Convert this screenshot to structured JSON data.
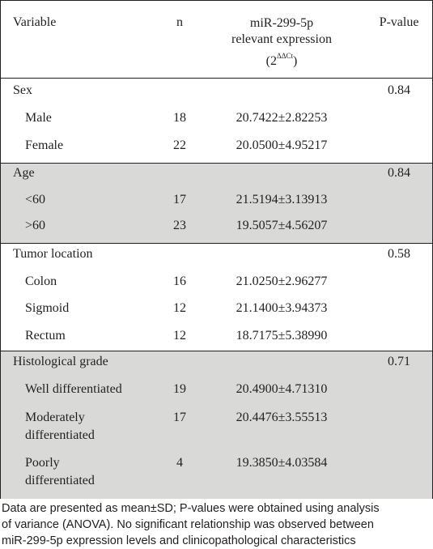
{
  "header": {
    "variable": "Variable",
    "n": "n",
    "expr_line1": "miR-299-5p",
    "expr_line2": "relevant expression",
    "expr_unit_open": "(2",
    "expr_unit_sup": "ΔΔCt",
    "expr_unit_close": ")",
    "pvalue": "P-value"
  },
  "groups": [
    {
      "label": "Sex",
      "p": "0.84",
      "shaded": false,
      "rows": [
        {
          "label": "Male",
          "n": "18",
          "expr": "20.7422±2.82253"
        },
        {
          "label": "Female",
          "n": "22",
          "expr": "20.0500±4.95217"
        }
      ]
    },
    {
      "label": "Age",
      "p": "0.84",
      "shaded": true,
      "rows": [
        {
          "label": "<60",
          "n": "17",
          "expr": "21.5194±3.13913"
        },
        {
          "label": ">60",
          "n": "23",
          "expr": "19.5057±4.56207"
        }
      ]
    },
    {
      "label": "Tumor location",
      "p": "0.58",
      "shaded": false,
      "rows": [
        {
          "label": "Colon",
          "n": "16",
          "expr": "21.0250±2.96277"
        },
        {
          "label": "Sigmoid",
          "n": "12",
          "expr": "21.1400±3.94373"
        },
        {
          "label": "Rectum",
          "n": "12",
          "expr": "18.7175±5.38990"
        }
      ]
    },
    {
      "label": "Histological grade",
      "p": "0.71",
      "shaded": true,
      "rows": [
        {
          "label": "Well differentiated",
          "n": "19",
          "expr": "20.4900±4.71310"
        },
        {
          "label": "Moderately differentiated",
          "label_line1": "Moderately",
          "label_line2": "differentiated",
          "n": "17",
          "expr": "20.4476±3.55513"
        },
        {
          "label": "Poorly differentiated",
          "label_line1": "Poorly",
          "label_line2": "differentiated",
          "n": "4",
          "expr": "19.3850±4.03584"
        }
      ]
    }
  ],
  "footnote": {
    "line1": "Data are presented as mean±SD; P-values were obtained using analysis",
    "line2": "of variance (ANOVA). No significant relationship was observed between",
    "line3": "miR-299-5p expression levels and clinicopathological characteristics"
  }
}
